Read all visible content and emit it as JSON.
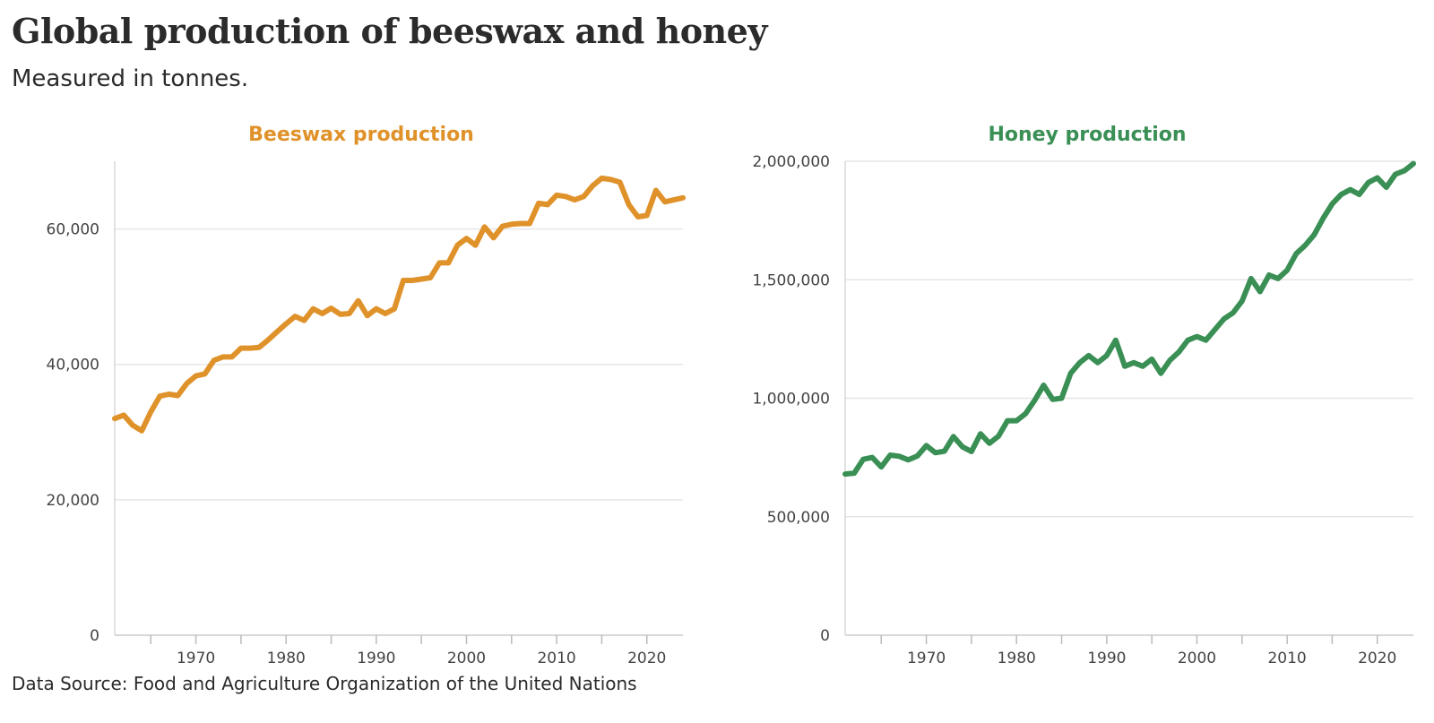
{
  "title": "Global production of beeswax and honey",
  "subtitle": "Measured in tonnes.",
  "source": "Data Source: Food and Agriculture Organization of the United Nations",
  "chart_data": [
    {
      "type": "line",
      "title": "Beeswax production",
      "color": "#e0922a",
      "xlabel": "",
      "ylabel": "",
      "xlim": [
        1961,
        2024
      ],
      "ylim": [
        0,
        70000
      ],
      "yticks": [
        0,
        20000,
        40000,
        60000
      ],
      "ytick_labels": [
        "0",
        "20,000",
        "40,000",
        "60,000"
      ],
      "xticks": [
        1970,
        1980,
        1990,
        2000,
        2010,
        2020
      ],
      "xtick_labels": [
        "1970",
        "1980",
        "1990",
        "2000",
        "2010",
        "2020"
      ],
      "grid": true,
      "series": [
        {
          "x": [
            1961,
            1962,
            1963,
            1964,
            1965,
            1966,
            1967,
            1968,
            1969,
            1970,
            1971,
            1972,
            1973,
            1974,
            1975,
            1976,
            1977,
            1978,
            1979,
            1980,
            1981,
            1982,
            1983,
            1984,
            1985,
            1986,
            1987,
            1988,
            1989,
            1990,
            1991,
            1992,
            1993,
            1994,
            1995,
            1996,
            1997,
            1998,
            1999,
            2000,
            2001,
            2002,
            2003,
            2004,
            2005,
            2006,
            2007,
            2008,
            2009,
            2010,
            2011,
            2012,
            2013,
            2014,
            2015,
            2016,
            2017,
            2018,
            2019,
            2020,
            2021,
            2022,
            2023,
            2024
          ],
          "values": [
            32000,
            32500,
            31000,
            30200,
            33000,
            35300,
            35600,
            35400,
            37200,
            38300,
            38600,
            40600,
            41100,
            41100,
            42400,
            42400,
            42500,
            43600,
            44800,
            46000,
            47100,
            46500,
            48200,
            47500,
            48300,
            47400,
            47500,
            49400,
            47200,
            48200,
            47500,
            48200,
            52400,
            52400,
            52600,
            52800,
            55000,
            55000,
            57600,
            58600,
            57600,
            60300,
            58700,
            60400,
            60700,
            60800,
            60800,
            63800,
            63600,
            65000,
            64800,
            64300,
            64800,
            66400,
            67500,
            67300,
            66900,
            63600,
            61800,
            62000,
            65700,
            64000,
            64300,
            64600
          ]
        }
      ]
    },
    {
      "type": "line",
      "title": "Honey production",
      "color": "#3a8f55",
      "xlabel": "",
      "ylabel": "",
      "xlim": [
        1961,
        2024
      ],
      "ylim": [
        0,
        2000000
      ],
      "yticks": [
        0,
        500000,
        1000000,
        1500000,
        2000000
      ],
      "ytick_labels": [
        "0",
        "500,000",
        "1,000,000",
        "1,500,000",
        "2,000,000"
      ],
      "xticks": [
        1970,
        1980,
        1990,
        2000,
        2010,
        2020
      ],
      "xtick_labels": [
        "1970",
        "1980",
        "1990",
        "2000",
        "2010",
        "2020"
      ],
      "grid": true,
      "series": [
        {
          "x": [
            1961,
            1962,
            1963,
            1964,
            1965,
            1966,
            1967,
            1968,
            1969,
            1970,
            1971,
            1972,
            1973,
            1974,
            1975,
            1976,
            1977,
            1978,
            1979,
            1980,
            1981,
            1982,
            1983,
            1984,
            1985,
            1986,
            1987,
            1988,
            1989,
            1990,
            1991,
            1992,
            1993,
            1994,
            1995,
            1996,
            1997,
            1998,
            1999,
            2000,
            2001,
            2002,
            2003,
            2004,
            2005,
            2006,
            2007,
            2008,
            2009,
            2010,
            2011,
            2012,
            2013,
            2014,
            2015,
            2016,
            2017,
            2018,
            2019,
            2020,
            2021,
            2022,
            2023,
            2024
          ],
          "values": [
            680000,
            684000,
            742000,
            750000,
            710000,
            760000,
            755000,
            740000,
            756000,
            800000,
            770000,
            776000,
            838000,
            795000,
            775000,
            850000,
            810000,
            840000,
            905000,
            905000,
            935000,
            990000,
            1055000,
            995000,
            1000000,
            1105000,
            1150000,
            1180000,
            1150000,
            1180000,
            1245000,
            1135000,
            1150000,
            1135000,
            1165000,
            1105000,
            1160000,
            1195000,
            1245000,
            1260000,
            1245000,
            1290000,
            1335000,
            1360000,
            1410000,
            1505000,
            1450000,
            1520000,
            1505000,
            1540000,
            1610000,
            1645000,
            1690000,
            1760000,
            1820000,
            1860000,
            1880000,
            1860000,
            1910000,
            1930000,
            1890000,
            1945000,
            1960000,
            1990000
          ]
        }
      ]
    }
  ]
}
